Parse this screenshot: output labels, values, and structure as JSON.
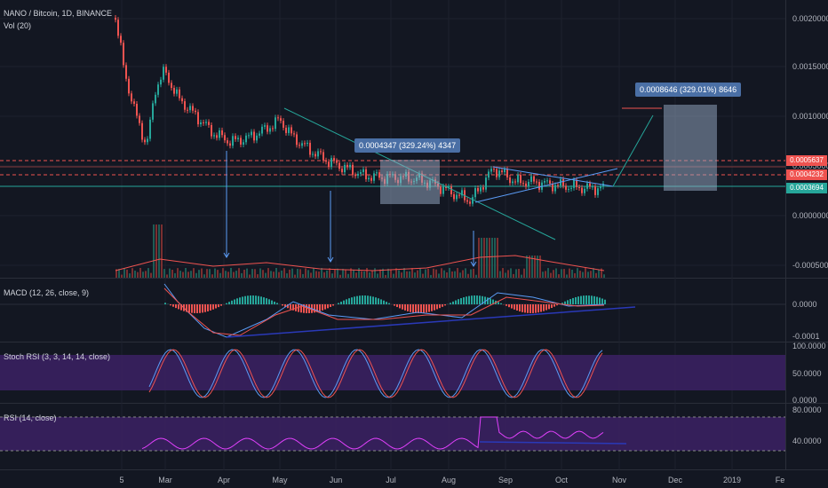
{
  "main_title": "NANO / Bitcoin, 1D, BINANCE",
  "volume_title": "Vol (20)",
  "macd_title": "MACD (12, 26, close, 9)",
  "stoch_title": "Stoch RSI (3, 3, 14, 14, close)",
  "rsi_title": "RSI (14, close)",
  "price_ticks": [
    "0.0020000",
    "0.0015000",
    "0.0010000",
    "0.0005000",
    "0.0000000",
    "-0.0005000"
  ],
  "price_badges": [
    {
      "label": "0.0005637",
      "color": "#ef5350"
    },
    {
      "label": "0.0004232",
      "color": "#ef5350"
    },
    {
      "label": "0.0003694",
      "color": "#26a69a"
    }
  ],
  "macd_ticks": [
    "0.0000",
    "-0.0001"
  ],
  "stoch_ticks": [
    "100.0000",
    "50.0000",
    "0.0000"
  ],
  "rsi_ticks": [
    "80.0000",
    "40.0000"
  ],
  "x_ticks": [
    "5",
    "Mar",
    "Apr",
    "May",
    "Jun",
    "Jul",
    "Aug",
    "Sep",
    "Oct",
    "Nov",
    "Dec",
    "2019",
    "Fe"
  ],
  "measure_1": "0.0004347 (329.24%) 4347",
  "measure_2": "0.0008646 (329.01%) 8646",
  "colors": {
    "up": "#26a69a",
    "down": "#ef5350",
    "trend": "#5b9cf6",
    "rsi": "#e040fb",
    "band": "#4a2a6f"
  },
  "chart_data": {
    "type": "candlestick",
    "title": "NANO / Bitcoin, 1D, BINANCE",
    "x": [
      "Feb 5",
      "Mar",
      "Apr",
      "May",
      "Jun",
      "Jul",
      "Aug",
      "Sep",
      "Oct"
    ],
    "close_approx": [
      0.00205,
      0.0014,
      0.00095,
      0.00105,
      0.00065,
      0.0004,
      0.00022,
      0.00048,
      0.00038
    ],
    "ylim": [
      -0.0005,
      0.0021
    ],
    "grid": true
  }
}
